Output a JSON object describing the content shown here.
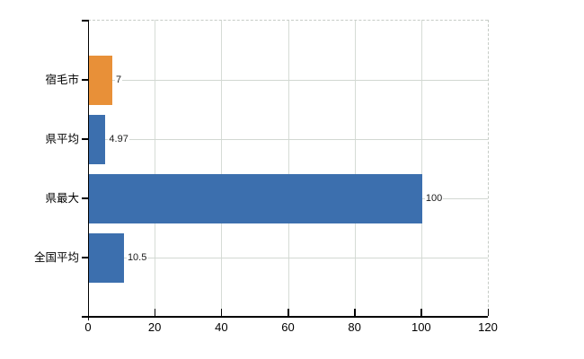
{
  "chart_data": {
    "type": "bar",
    "orientation": "horizontal",
    "title": "",
    "xlabel": "",
    "ylabel": "",
    "categories": [
      "宿毛市",
      "県平均",
      "県最大",
      "全国平均"
    ],
    "values": [
      7,
      4.97,
      100,
      10.5
    ],
    "value_labels": [
      "7",
      "4.97",
      "100",
      "10.5"
    ],
    "bar_colors": [
      "#E89038",
      "#3C6FAE",
      "#3C6FAE",
      "#3C6FAE"
    ],
    "xlim": [
      0,
      120
    ],
    "xticks": [
      0,
      20,
      40,
      60,
      80,
      100,
      120
    ],
    "grid": true,
    "legend": false
  },
  "colors": {
    "highlight_bar": "#E89038",
    "default_bar": "#3C6FAE",
    "axis": "#000000",
    "gridline": "#D6DCD6",
    "plot_border_dashed": "#C6CCC6",
    "background": "#FFFFFF",
    "text": "#000000"
  }
}
